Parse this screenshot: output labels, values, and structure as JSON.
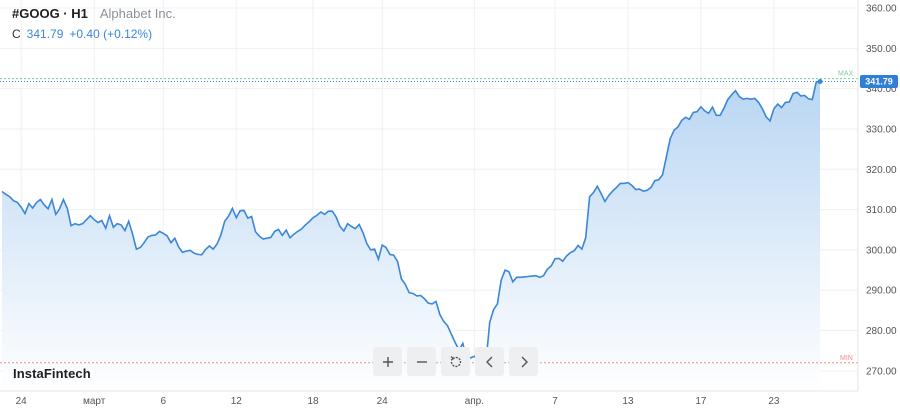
{
  "header": {
    "symbol": "#GOOG · H1",
    "company": "Alphabet Inc.",
    "quote_label": "C",
    "price": "341.79",
    "change": "+0.40 (+0.12%)"
  },
  "logo": "InstaFintech",
  "colors": {
    "line": "#3a86d8",
    "fill_top": "#b9d6f3",
    "fill_bottom": "#ffffff",
    "max_line": "#7ec99a",
    "min_line": "#f08c8c",
    "last_line": "#3a86d8",
    "badge": "#2f7fd6"
  },
  "toolbar": {
    "buttons": [
      {
        "name": "zoom-in-button",
        "icon": "plus-icon"
      },
      {
        "name": "zoom-out-button",
        "icon": "minus-icon"
      },
      {
        "name": "reset-button",
        "icon": "reset-icon"
      },
      {
        "name": "scroll-left-button",
        "icon": "chevron-left-icon"
      },
      {
        "name": "scroll-right-button",
        "icon": "chevron-right-icon"
      }
    ]
  },
  "chart_data": {
    "type": "area",
    "ylim": [
      265,
      362
    ],
    "y_ticks": [
      "350.00",
      "340.00",
      "330.00",
      "320.00",
      "310.00",
      "300.00",
      "290.00",
      "280.00",
      "270.00"
    ],
    "y_ticks_top_partial": "360.00",
    "x_ticks": [
      "24",
      "март",
      "6",
      "12",
      "18",
      "24",
      "апр.",
      "7",
      "13",
      "17",
      "23"
    ],
    "x_tick_index": [
      5,
      24,
      42,
      61,
      81,
      99,
      123,
      144,
      163,
      182,
      201
    ],
    "max_label": "MAX",
    "min_label": "MIN",
    "max_value": 342.5,
    "min_value": 272.0,
    "last_price_label": "341.79",
    "last_value": 341.79,
    "values": [
      314.5,
      313.8,
      313.2,
      312.2,
      311.8,
      310.6,
      309.0,
      311.5,
      310.4,
      311.8,
      312.5,
      311.2,
      310.2,
      312.5,
      308.8,
      310.2,
      312.5,
      310.3,
      306.0,
      306.5,
      306.2,
      306.5,
      307.5,
      308.5,
      307.5,
      306.8,
      307.3,
      305.4,
      308.5,
      305.6,
      306.5,
      306.2,
      304.8,
      307.1,
      303.9,
      300.2,
      300.6,
      301.8,
      303.2,
      303.6,
      303.7,
      304.6,
      304.1,
      303.5,
      301.8,
      302.9,
      300.7,
      299.4,
      299.7,
      299.9,
      299.2,
      298.9,
      298.8,
      300.1,
      301.0,
      300.2,
      301.5,
      303.7,
      307.1,
      308.4,
      310.3,
      308.0,
      309.7,
      309.8,
      307.9,
      308.3,
      304.5,
      303.4,
      302.7,
      302.9,
      303.1,
      304.6,
      305.1,
      303.6,
      304.9,
      303.0,
      303.9,
      304.6,
      305.2,
      306.2,
      307.0,
      308.0,
      308.6,
      309.4,
      308.8,
      309.6,
      309.6,
      308.2,
      305.8,
      304.7,
      306.5,
      305.8,
      305.3,
      306.3,
      304.3,
      301.6,
      300.0,
      300.2,
      297.7,
      301.2,
      300.6,
      298.9,
      298.7,
      297.1,
      292.8,
      291.5,
      289.4,
      289.2,
      288.6,
      288.7,
      287.9,
      286.8,
      286.6,
      287.2,
      284.0,
      282.3,
      281.2,
      279.1,
      277.0,
      275.2,
      276.8,
      273.0,
      273.2,
      273.6,
      272.6,
      273.0,
      272.0,
      282.0,
      285.2,
      286.6,
      292.5,
      295.0,
      294.6,
      292.1,
      293.2,
      293.2,
      293.3,
      293.4,
      293.5,
      293.6,
      293.2,
      293.6,
      295.2,
      296.0,
      297.8,
      297.9,
      297.2,
      298.5,
      299.3,
      299.8,
      301.1,
      300.2,
      303.0,
      313.2,
      314.2,
      315.8,
      314.0,
      312.0,
      313.5,
      314.6,
      315.5,
      316.5,
      316.5,
      316.7,
      316.0,
      315.0,
      315.1,
      314.6,
      314.8,
      315.5,
      317.2,
      317.4,
      318.6,
      323.1,
      327.6,
      329.7,
      330.5,
      332.1,
      332.9,
      332.4,
      334.1,
      334.3,
      335.5,
      334.5,
      333.9,
      335.4,
      333.4,
      333.4,
      335.2,
      337.3,
      338.5,
      339.5,
      338.0,
      337.4,
      337.6,
      337.4,
      337.6,
      336.6,
      335.0,
      333.0,
      332.0,
      335.0,
      336.2,
      335.3,
      336.6,
      336.7,
      338.8,
      339.1,
      338.2,
      338.3,
      337.5,
      337.3,
      341.6,
      341.79
    ]
  }
}
